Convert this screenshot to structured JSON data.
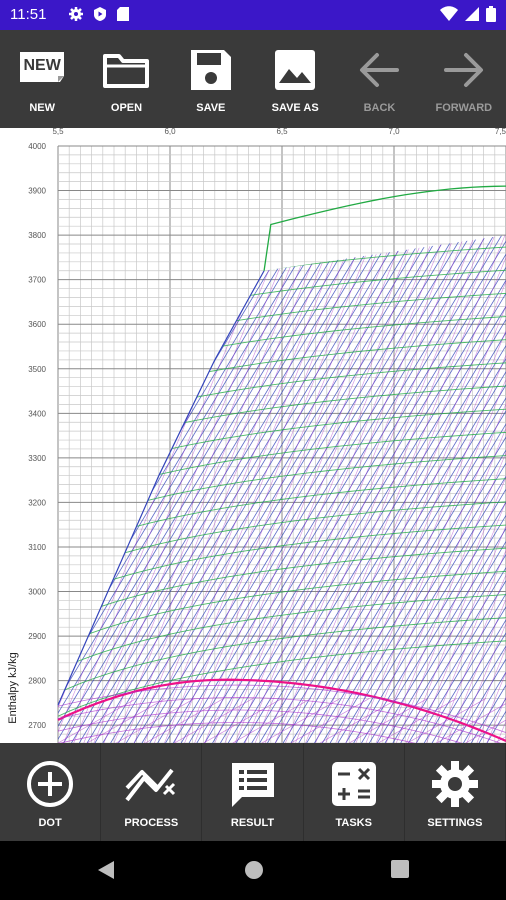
{
  "status_bar": {
    "time": "11:51"
  },
  "toolbar": {
    "new": {
      "label": "NEW",
      "icon_text": "NEW"
    },
    "open": {
      "label": "OPEN"
    },
    "save": {
      "label": "SAVE"
    },
    "save_as": {
      "label": "SAVE AS"
    },
    "back": {
      "label": "BACK"
    },
    "forward": {
      "label": "FORWARD"
    }
  },
  "chart_data": {
    "type": "line",
    "xlabel": "",
    "ylabel": "Enthalpy kJ/kg",
    "x_ticks": [
      "5,5",
      "6,0",
      "6,5",
      "7,0",
      "7,5"
    ],
    "y_ticks": [
      "2700",
      "2800",
      "2900",
      "3000",
      "3100",
      "3200",
      "3300",
      "3400",
      "3500",
      "3600",
      "3700",
      "3800",
      "3900",
      "4000"
    ],
    "xlim": [
      5.5,
      7.5
    ],
    "ylim": [
      2660,
      4000
    ],
    "grid": true,
    "saturation_curve_color": "#ee1188",
    "isobar_color": "#3344bb",
    "isotherm_color": "#22aa44",
    "quality_line_color": "#aa33cc"
  },
  "bottom_bar": {
    "dot": {
      "label": "DOT"
    },
    "process": {
      "label": "PROCESS"
    },
    "result": {
      "label": "RESULT"
    },
    "tasks": {
      "label": "TASKS"
    },
    "settings": {
      "label": "SETTINGS"
    }
  }
}
